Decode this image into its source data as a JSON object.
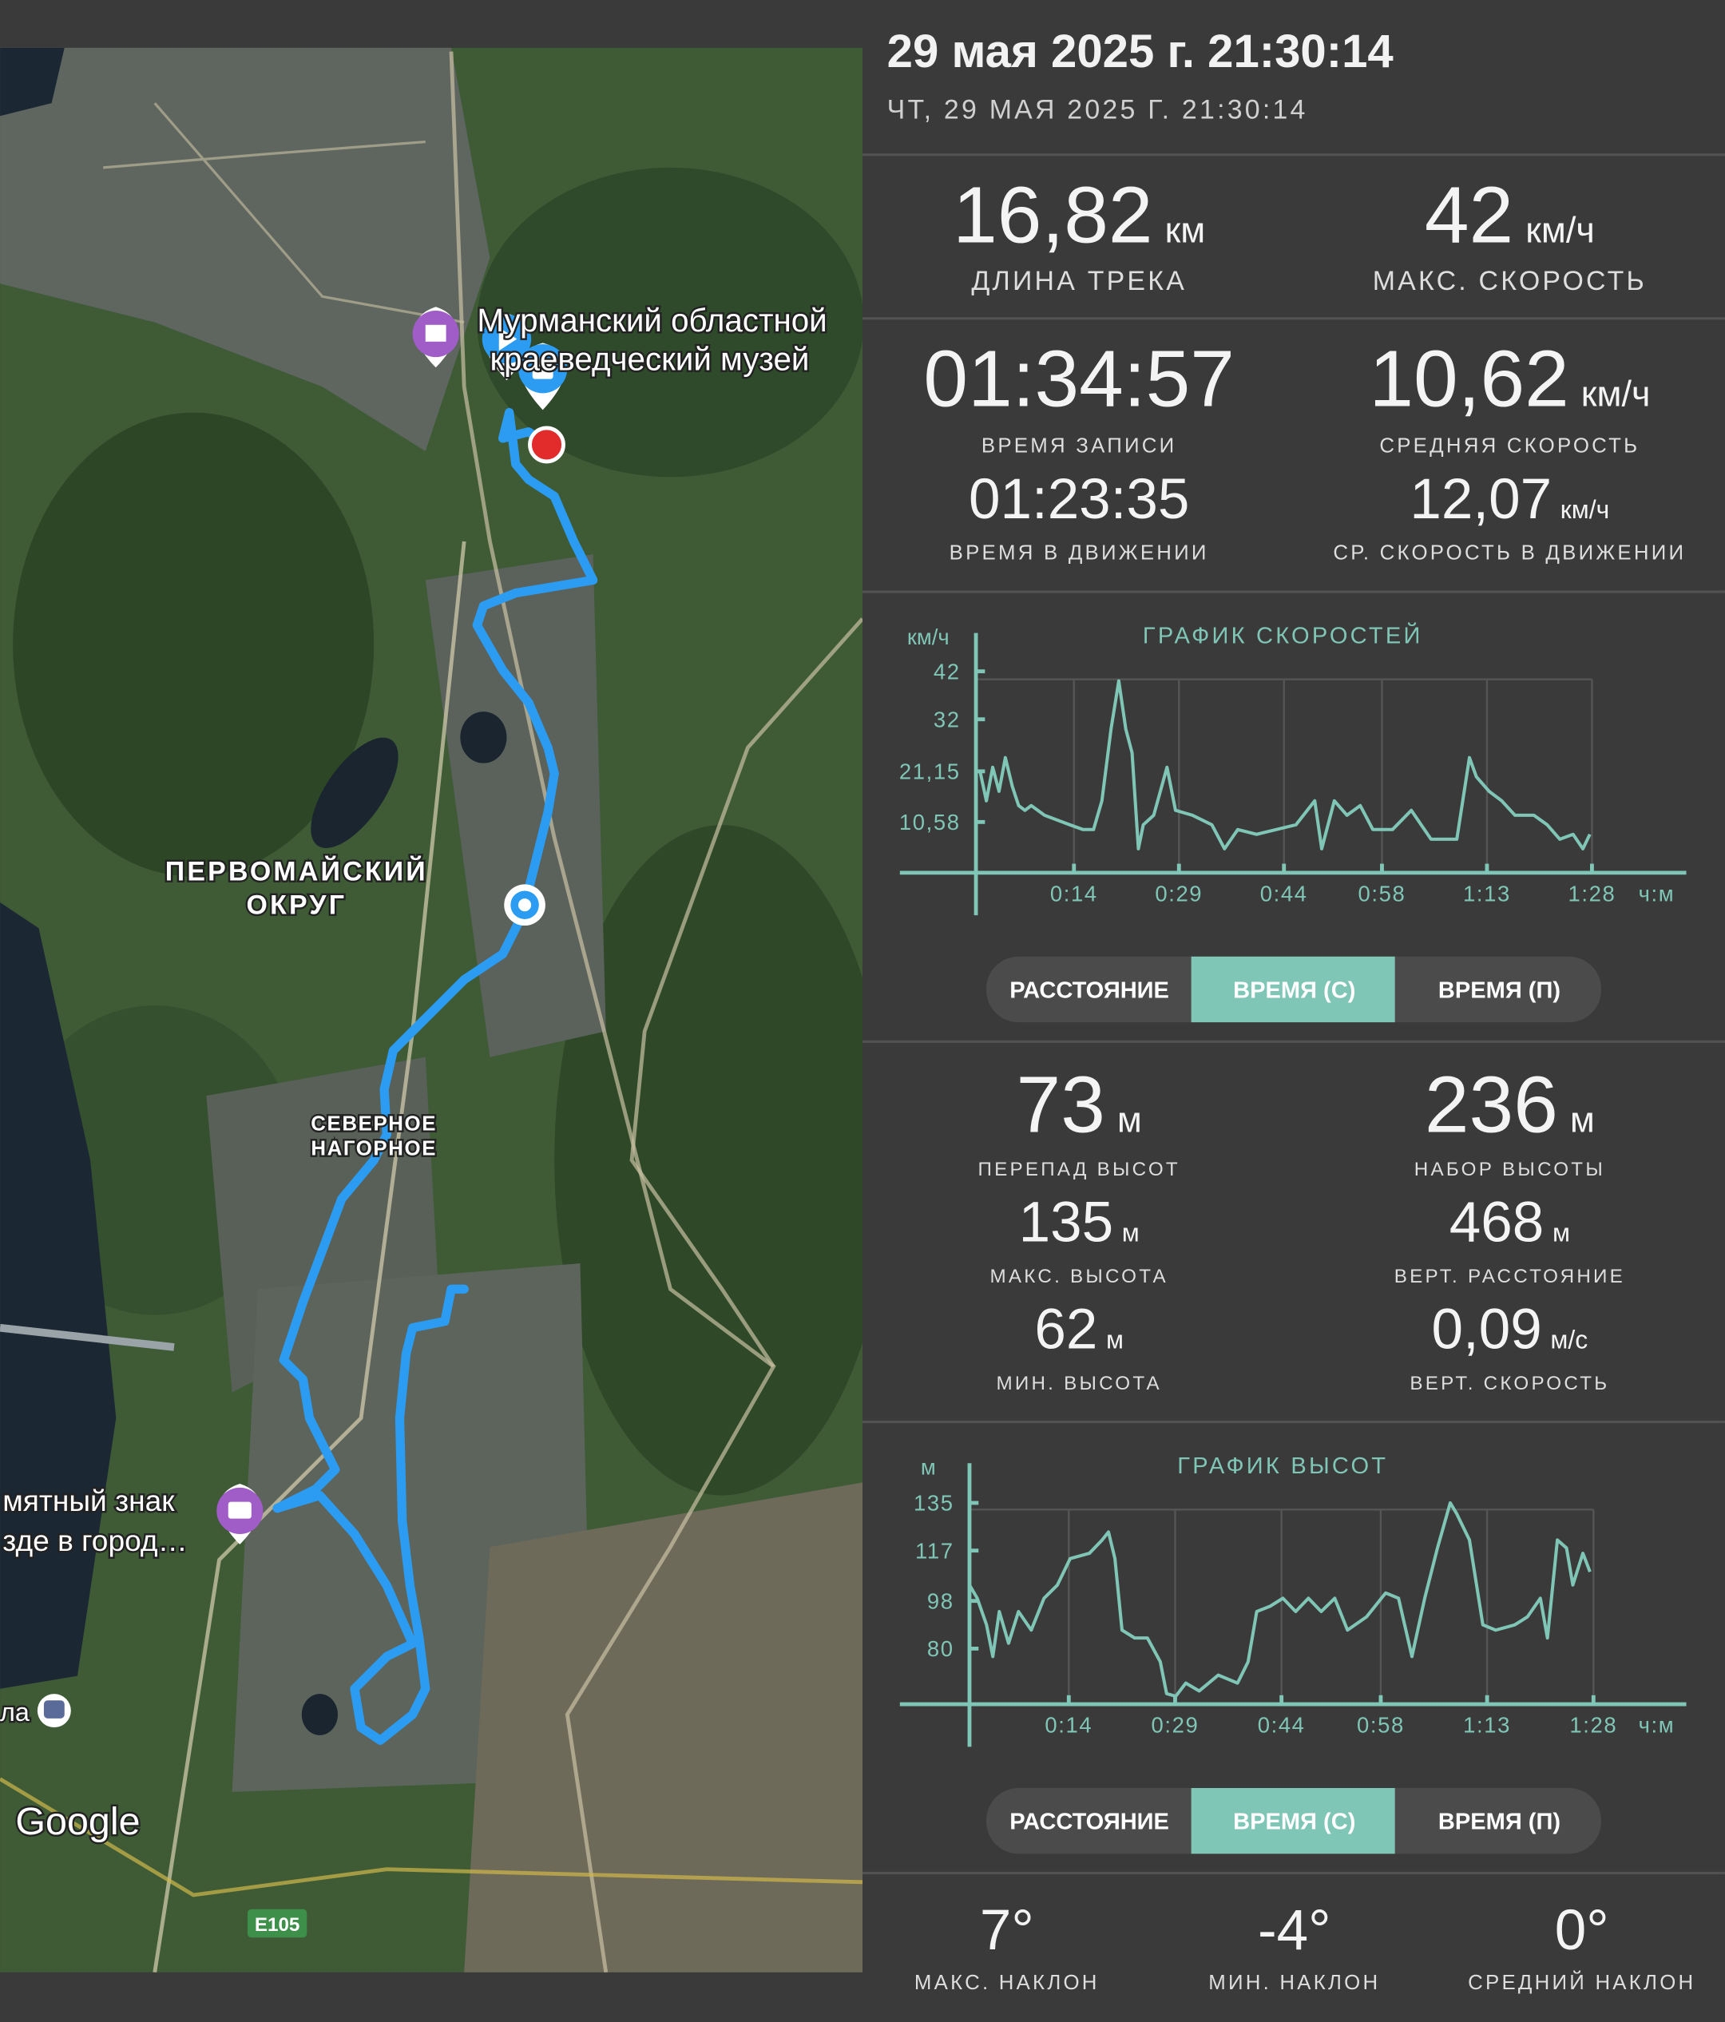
{
  "header": {
    "title": "29 мая 2025 г. 21:30:14",
    "subtitle": "ЧТ, 29 МАЯ 2025 Г. 21:30:14"
  },
  "map": {
    "labels": [
      "Мурманский областной",
      "краеведческий музей",
      "ПЕРВОМАЙСКИЙ",
      "ОКРУГ",
      "СЕВЕРНОЕ",
      "НАГОРНОЕ",
      "мятный знак",
      "зде в город…",
      "ла"
    ],
    "brand": "Google",
    "road": "E105"
  },
  "track_stats": [
    {
      "value": "16,82",
      "unit": "км",
      "label": "ДЛИНА ТРЕКА"
    },
    {
      "value": "42",
      "unit": "км/ч",
      "label": "МАКС. СКОРОСТЬ"
    },
    {
      "value": "01:34:57",
      "label": "ВРЕМЯ ЗАПИСИ"
    },
    {
      "value": "10,62",
      "unit": "км/ч",
      "label": "СРЕДНЯЯ СКОРОСТЬ"
    },
    {
      "value": "01:23:35",
      "label": "ВРЕМЯ В ДВИЖЕНИИ"
    },
    {
      "value": "12,07",
      "unit": "км/ч",
      "label": "СР. СКОРОСТЬ В ДВИЖЕНИИ"
    }
  ],
  "elevation_stats": [
    {
      "value": "73",
      "unit": "м",
      "label": "ПЕРЕПАД ВЫСОТ"
    },
    {
      "value": "236",
      "unit": "м",
      "label": "НАБОР ВЫСОТЫ"
    },
    {
      "value": "135",
      "unit": "м",
      "label": "МАКС. ВЫСОТА"
    },
    {
      "value": "468",
      "unit": "м",
      "label": "ВЕРТ. РАССТОЯНИЕ"
    },
    {
      "value": "62",
      "unit": "м",
      "label": "МИН. ВЫСОТА"
    },
    {
      "value": "0,09",
      "unit": "м/с",
      "label": "ВЕРТ. СКОРОСТЬ"
    }
  ],
  "slope_stats": [
    {
      "value": "7°",
      "label": "МАКС. НАКЛОН"
    },
    {
      "value": "-4°",
      "label": "МИН. НАКЛОН"
    },
    {
      "value": "0°",
      "label": "СРЕДНИЙ НАКЛОН"
    }
  ],
  "toggle_groups": [
    {
      "options": [
        "РАССТОЯНИЕ",
        "ВРЕМЯ (С)",
        "ВРЕМЯ (П)"
      ],
      "active": 1
    },
    {
      "options": [
        "РАССТОЯНИЕ",
        "ВРЕМЯ (С)",
        "ВРЕМЯ (П)"
      ],
      "active": 1
    }
  ],
  "chart_data": [
    {
      "type": "line",
      "title": "ГРАФИК СКОРОСТЕЙ",
      "y_label": "км/ч",
      "x_label": "ч:м",
      "color": "#80c6b6",
      "grid": true,
      "x": [
        0.6,
        1.5,
        2.4,
        3.3,
        4.2,
        5.2,
        6.1,
        7,
        7.9,
        9.8,
        11.6,
        13.4,
        15.3,
        16.8,
        18,
        19.3,
        20.4,
        21.4,
        22.3,
        23.2,
        23.9,
        25.4,
        27.3,
        28.5,
        30.9,
        33.7,
        35.5,
        37.4,
        40.1,
        42.9,
        45.7,
        48.4,
        49.4,
        51.2,
        53,
        54.9,
        56.7,
        59.5,
        62.2,
        65,
        68.7,
        70.5,
        71.5,
        73.3,
        75.1,
        77,
        79.7,
        81.6,
        83.4,
        85.3,
        86.7,
        87.7
      ],
      "values": [
        21,
        15,
        22,
        17,
        24,
        18,
        14,
        13,
        14,
        12,
        11,
        10,
        9,
        9,
        15,
        30,
        40,
        30,
        25,
        5,
        10,
        12,
        22,
        13,
        12,
        10,
        5,
        9,
        8,
        9,
        10,
        15,
        5,
        15,
        12,
        14,
        9,
        9,
        13,
        7,
        7,
        24,
        20,
        17,
        15,
        12,
        12,
        10,
        7,
        8,
        5,
        8
      ],
      "xlim": [
        0,
        100
      ],
      "ylim": [
        0,
        50
      ],
      "xticks": [
        {
          "value": 14,
          "label": "0:14"
        },
        {
          "value": 29,
          "label": "0:29"
        },
        {
          "value": 44,
          "label": "0:44"
        },
        {
          "value": 58,
          "label": "0:58"
        },
        {
          "value": 73,
          "label": "1:13"
        },
        {
          "value": 88,
          "label": "1:28"
        }
      ],
      "yticks": [
        {
          "value": 10.58,
          "label": "10,58"
        },
        {
          "value": 21.15,
          "label": "21,15"
        },
        32,
        42
      ]
    },
    {
      "type": "line",
      "title": "ГРАФИК ВЫСОТ",
      "y_label": "м",
      "x_label": "ч:м",
      "color": "#80c6b6",
      "grid": true,
      "x": [
        0,
        1.1,
        2.4,
        3.3,
        4.2,
        5.5,
        6.9,
        8.7,
        10.5,
        12.4,
        14.2,
        16.9,
        18.7,
        19.6,
        20.5,
        21.5,
        23.3,
        25.1,
        26.9,
        27.8,
        29.1,
        30.5,
        32.4,
        35.1,
        37.8,
        39.3,
        40.5,
        42.4,
        44.2,
        46,
        47.8,
        49.6,
        51.5,
        53.3,
        56,
        58.7,
        60.5,
        62.4,
        64.2,
        66,
        67.8,
        68.7,
        70.5,
        72.4,
        74.2,
        76.9,
        78.7,
        80.5,
        81.5,
        82.9,
        84.2,
        85.1,
        86.5,
        87.5
      ],
      "values": [
        104,
        99,
        89,
        77,
        94,
        82,
        94,
        87,
        99,
        104,
        114,
        116,
        121,
        124,
        114,
        87,
        84,
        84,
        75,
        63,
        62,
        67,
        64,
        70,
        67,
        75,
        94,
        96,
        99,
        94,
        99,
        94,
        99,
        87,
        92,
        101,
        99,
        77,
        99,
        118,
        135,
        131,
        121,
        89,
        87,
        89,
        92,
        99,
        84,
        121,
        118,
        104,
        116,
        109
      ],
      "xlim": [
        0,
        100
      ],
      "ylim": [
        59,
        150
      ],
      "xticks": [
        {
          "value": 14,
          "label": "0:14"
        },
        {
          "value": 29,
          "label": "0:29"
        },
        {
          "value": 44,
          "label": "0:44"
        },
        {
          "value": 58,
          "label": "0:58"
        },
        {
          "value": 73,
          "label": "1:13"
        },
        {
          "value": 88,
          "label": "1:28"
        }
      ],
      "yticks": [
        80,
        98,
        117,
        135
      ]
    }
  ]
}
